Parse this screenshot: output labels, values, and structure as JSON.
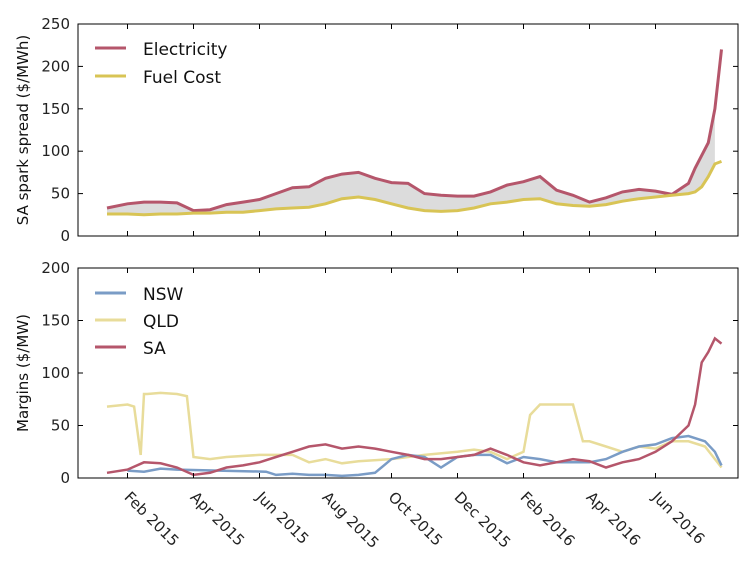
{
  "chart_data": [
    {
      "type": "area",
      "ylabel": "SA spark spread ($/MWh)",
      "xlabel": "",
      "ylim": [
        0,
        250
      ],
      "yticks": [
        "0",
        "50",
        "100",
        "150",
        "200",
        "250"
      ],
      "legend_position": "top-left",
      "x_unit": "months since 2015-01-01",
      "x": [
        0.38,
        1.0,
        1.5,
        2.0,
        2.5,
        3.0,
        3.5,
        4.0,
        4.5,
        5.0,
        5.5,
        6.0,
        6.5,
        7.0,
        7.5,
        8.0,
        8.5,
        9.0,
        9.5,
        10.0,
        10.5,
        11.0,
        11.5,
        12.0,
        12.5,
        13.0,
        13.5,
        14.0,
        14.5,
        15.0,
        15.5,
        16.0,
        16.5,
        17.0,
        17.5,
        18.0,
        18.2,
        18.4,
        18.6,
        18.8
      ],
      "series": [
        {
          "name": "Electricity",
          "color": "#b5566b",
          "values": [
            33,
            38,
            40,
            40,
            39,
            30,
            31,
            37,
            40,
            43,
            50,
            57,
            58,
            68,
            73,
            75,
            68,
            63,
            62,
            50,
            48,
            47,
            47,
            52,
            60,
            64,
            70,
            54,
            48,
            40,
            45,
            52,
            55,
            53,
            49,
            62,
            80,
            95,
            110,
            150
          ]
        },
        {
          "name": "Fuel Cost",
          "color": "#d8c455",
          "values": [
            26,
            26,
            25,
            26,
            26,
            27,
            27,
            28,
            28,
            30,
            32,
            33,
            34,
            38,
            44,
            46,
            43,
            38,
            33,
            30,
            29,
            30,
            33,
            38,
            40,
            43,
            44,
            38,
            36,
            35,
            37,
            41,
            44,
            46,
            48,
            50,
            52,
            58,
            70,
            85
          ]
        }
      ],
      "final_points": {
        "x": [
          19.0
        ],
        "Electricity": [
          220
        ],
        "Fuel Cost": [
          88
        ]
      }
    },
    {
      "type": "line",
      "ylabel": "Margins ($/MW)",
      "xlabel": "",
      "ylim": [
        0,
        200
      ],
      "yticks": [
        "0",
        "50",
        "100",
        "150",
        "200"
      ],
      "legend_position": "top-left",
      "x_unit": "months since 2015-01-01",
      "xticks": [
        "Feb 2015",
        "Apr 2015",
        "Jun 2015",
        "Aug 2015",
        "Oct 2015",
        "Dec 2015",
        "Feb 2016",
        "Apr 2016",
        "Jun 2016"
      ],
      "xtick_positions": [
        1,
        3,
        5,
        7,
        9,
        11,
        13,
        15,
        17
      ],
      "series": [
        {
          "name": "NSW",
          "color": "#7a9cc6",
          "x": [
            1.0,
            1.5,
            2.0,
            2.5,
            5.2,
            5.5,
            6.0,
            6.5,
            7.0,
            7.5,
            8.0,
            8.5,
            9.0,
            9.5,
            10.0,
            10.5,
            11.0,
            11.5,
            12.0,
            12.5,
            13.0,
            13.5,
            14.0,
            14.5,
            15.0,
            15.5,
            16.0,
            16.5,
            17.0,
            17.5,
            18.0,
            18.5,
            18.8,
            19.0
          ],
          "values": [
            7,
            6,
            9,
            8,
            6,
            3,
            4,
            3,
            3,
            2,
            3,
            5,
            18,
            22,
            20,
            10,
            20,
            22,
            22,
            14,
            20,
            18,
            15,
            15,
            15,
            18,
            25,
            30,
            32,
            38,
            40,
            35,
            25,
            12
          ]
        },
        {
          "name": "QLD",
          "color": "#e8dc9a",
          "x": [
            0.38,
            1.0,
            1.2,
            1.4,
            1.5,
            1.6,
            2.0,
            2.5,
            2.8,
            3.0,
            3.5,
            4.0,
            5.0,
            6.0,
            6.5,
            7.0,
            7.5,
            8.0,
            9.0,
            10.0,
            11.0,
            11.5,
            12.0,
            12.5,
            13.0,
            13.2,
            13.5,
            14.0,
            14.5,
            14.8,
            15.0,
            15.5,
            16.0,
            16.5,
            17.0,
            17.5,
            18.0,
            18.5,
            19.0
          ],
          "values": [
            68,
            70,
            68,
            22,
            80,
            80,
            81,
            80,
            78,
            20,
            18,
            20,
            22,
            22,
            15,
            18,
            14,
            16,
            18,
            22,
            25,
            27,
            25,
            18,
            25,
            60,
            70,
            70,
            70,
            35,
            35,
            30,
            25,
            30,
            28,
            35,
            35,
            30,
            10
          ]
        },
        {
          "name": "SA",
          "color": "#b5566b",
          "x": [
            0.38,
            1.0,
            1.5,
            2.0,
            2.5,
            3.0,
            3.5,
            4.0,
            4.5,
            5.0,
            5.5,
            6.0,
            6.5,
            7.0,
            7.5,
            8.0,
            8.5,
            9.0,
            9.5,
            10.0,
            10.5,
            11.0,
            11.5,
            12.0,
            12.5,
            13.0,
            13.5,
            14.0,
            14.5,
            15.0,
            15.5,
            16.0,
            16.5,
            17.0,
            17.5,
            18.0,
            18.2,
            18.4,
            18.6,
            18.8,
            19.0
          ],
          "values": [
            5,
            8,
            15,
            14,
            10,
            3,
            5,
            10,
            12,
            15,
            20,
            25,
            30,
            32,
            28,
            30,
            28,
            25,
            22,
            18,
            18,
            20,
            22,
            28,
            22,
            15,
            12,
            15,
            18,
            16,
            10,
            15,
            18,
            25,
            35,
            50,
            70,
            110,
            120,
            133,
            128
          ]
        }
      ]
    }
  ]
}
